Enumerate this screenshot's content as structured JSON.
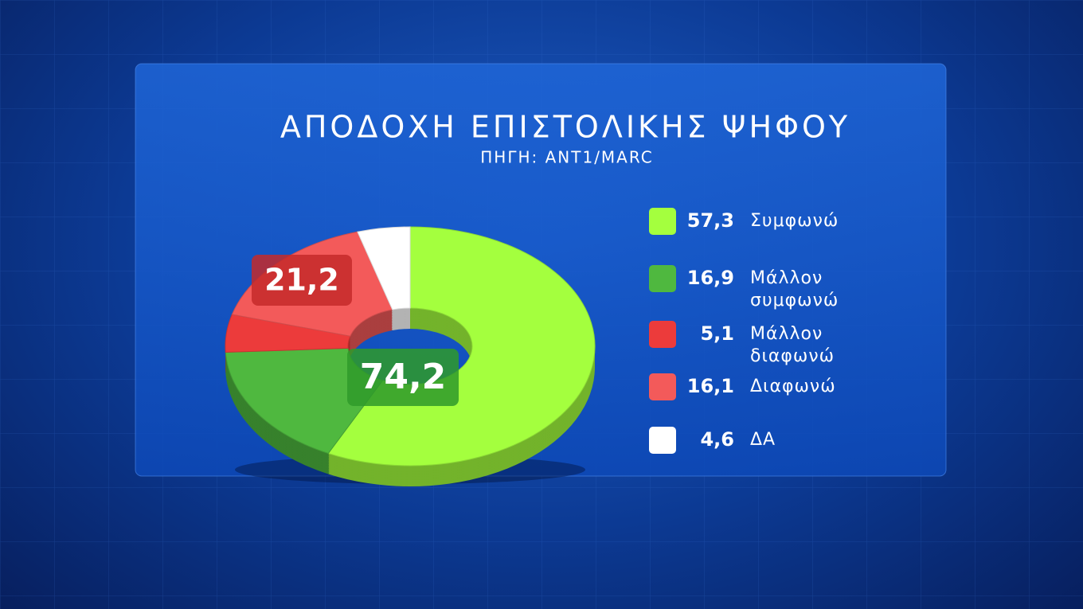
{
  "chart_data": {
    "type": "pie",
    "title": "ΑΠΟΔΟΧΗ ΕΠΙΣΤΟΛΙΚΗΣ ΨΗΦΟΥ",
    "subtitle": "ΠΗΓΗ: ANT1/MARC",
    "categories": [
      "Συμφωνώ",
      "Μάλλον συμφωνώ",
      "Μάλλον διαφωνώ",
      "Διαφωνώ",
      "ΔΑ"
    ],
    "values": [
      57.3,
      16.9,
      5.1,
      16.1,
      4.6
    ],
    "value_labels": [
      "57,3",
      "16,9",
      "5,1",
      "16,1",
      "4,6"
    ],
    "colors": [
      "#a4ff3e",
      "#4fb83f",
      "#ec3b3b",
      "#f35a5a",
      "#ffffff"
    ],
    "annotations": [
      {
        "value": 74.2,
        "label": "74,2"
      },
      {
        "value": 21.2,
        "label": "21,2"
      }
    ]
  }
}
